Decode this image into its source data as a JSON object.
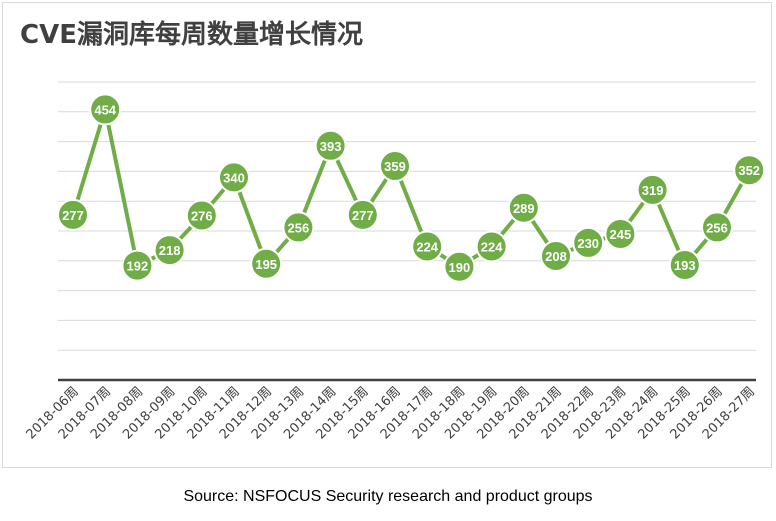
{
  "chart_data": {
    "type": "line",
    "title": "CVE漏洞库每周数量增长情况",
    "categories": [
      "2018-06周",
      "2018-07周",
      "2018-08周",
      "2018-09周",
      "2018-10周",
      "2018-11周",
      "2018-12周",
      "2018-13周",
      "2018-14周",
      "2018-15周",
      "2018-16周",
      "2018-17周",
      "2018-18周",
      "2018-19周",
      "2018-20周",
      "2018-21周",
      "2018-22周",
      "2018-23周",
      "2018-24周",
      "2018-25周",
      "2018-26周",
      "2018-27周"
    ],
    "series": [
      {
        "values": [
          277,
          454,
          192,
          218,
          276,
          340,
          195,
          256,
          393,
          277,
          359,
          224,
          190,
          224,
          289,
          208,
          230,
          245,
          319,
          193,
          256,
          352
        ]
      }
    ],
    "ylim": [
      0,
      500
    ],
    "grid": true,
    "legend": "none",
    "line_color": "#70ad47",
    "label_color": "#ffffff",
    "grid_color": "#d9d9d9",
    "axis_color": "#404040"
  },
  "source": "Source: NSFOCUS Security research and product groups"
}
